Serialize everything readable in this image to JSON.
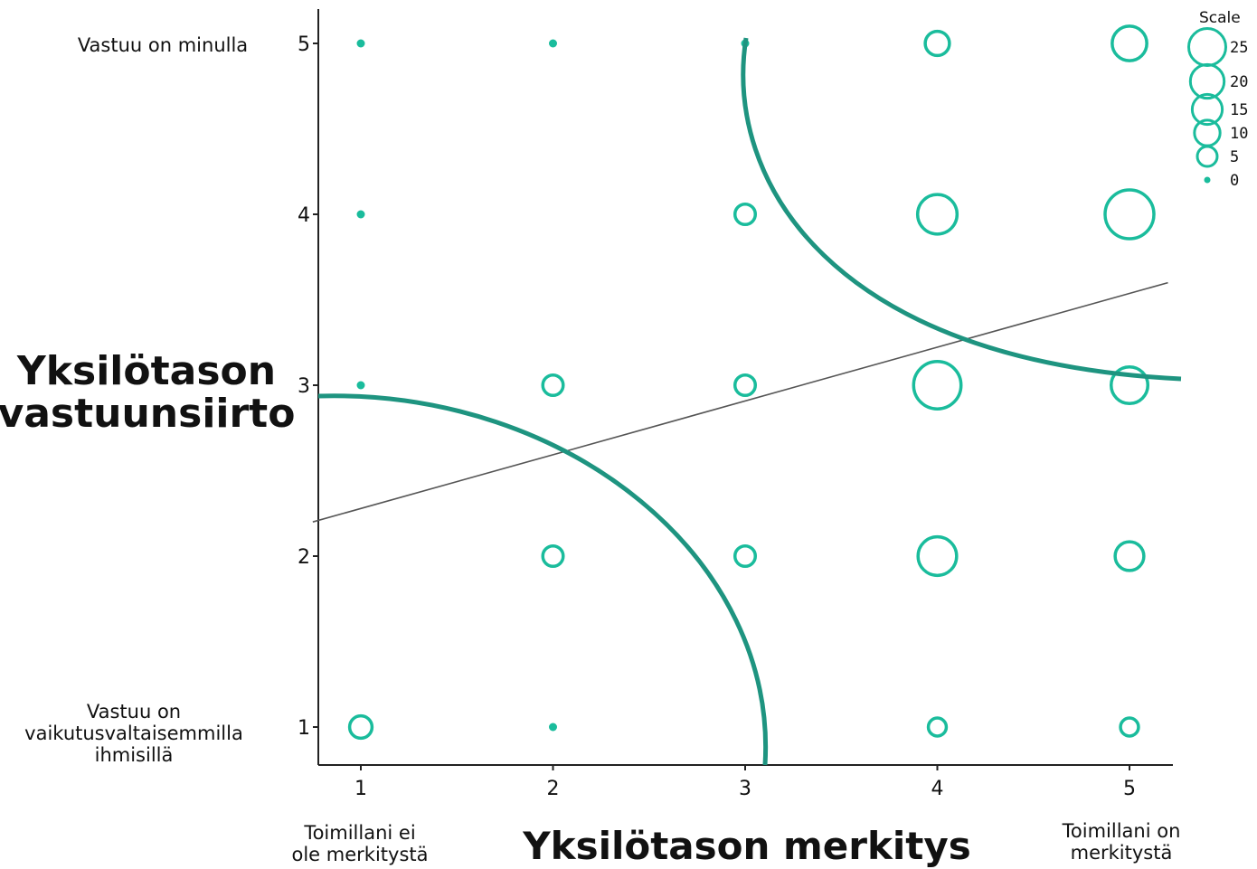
{
  "chart_data": {
    "type": "scatter",
    "xlabel": "Yksilötason merkitys",
    "ylabel_lines": [
      "Yksilötason",
      "vastuunsiirto"
    ],
    "x_ticks": [
      1,
      2,
      3,
      4,
      5
    ],
    "y_ticks": [
      1,
      2,
      3,
      4,
      5
    ],
    "xlim": [
      0.75,
      5.2
    ],
    "ylim": [
      0.8,
      5.25
    ],
    "x_anchor_labels": {
      "low": [
        "Toimillani ei",
        "ole merkitystä"
      ],
      "high": [
        "Toimillani on",
        "merkitystä"
      ]
    },
    "y_anchor_labels": {
      "high": [
        "Vastuu on minulla"
      ],
      "low": [
        "Vastuu on",
        "vaikutusvaltaisemmilla",
        "ihmisillä"
      ]
    },
    "points": [
      {
        "x": 1,
        "y": 5,
        "count": 1
      },
      {
        "x": 2,
        "y": 5,
        "count": 1
      },
      {
        "x": 3,
        "y": 5,
        "count": 1
      },
      {
        "x": 4,
        "y": 5,
        "count": 5
      },
      {
        "x": 5,
        "y": 5,
        "count": 13
      },
      {
        "x": 1,
        "y": 4,
        "count": 1
      },
      {
        "x": 3,
        "y": 4,
        "count": 3
      },
      {
        "x": 4,
        "y": 4,
        "count": 18
      },
      {
        "x": 5,
        "y": 4,
        "count": 30
      },
      {
        "x": 1,
        "y": 3,
        "count": 1
      },
      {
        "x": 2,
        "y": 3,
        "count": 3
      },
      {
        "x": 3,
        "y": 3,
        "count": 3
      },
      {
        "x": 4,
        "y": 3,
        "count": 28
      },
      {
        "x": 5,
        "y": 3,
        "count": 15
      },
      {
        "x": 2,
        "y": 2,
        "count": 3
      },
      {
        "x": 3,
        "y": 2,
        "count": 3
      },
      {
        "x": 4,
        "y": 2,
        "count": 17
      },
      {
        "x": 5,
        "y": 2,
        "count": 8
      },
      {
        "x": 1,
        "y": 1,
        "count": 4
      },
      {
        "x": 2,
        "y": 1,
        "count": 1
      },
      {
        "x": 4,
        "y": 1,
        "count": 2
      },
      {
        "x": 5,
        "y": 1,
        "count": 2
      }
    ],
    "regression_line": {
      "x": [
        0.75,
        5.2
      ],
      "y": [
        2.2,
        3.6
      ],
      "color": "#555555"
    },
    "legend": {
      "title": "Scale",
      "placement": "top-right",
      "sizes": [
        25,
        20,
        15,
        10,
        5,
        0
      ],
      "labels": [
        "25",
        "20",
        "15",
        "10",
        "5",
        "0"
      ]
    },
    "colors": {
      "points": "#1abc9c",
      "arcs": "#1e9480",
      "axis": "#222222"
    },
    "grid": false
  }
}
